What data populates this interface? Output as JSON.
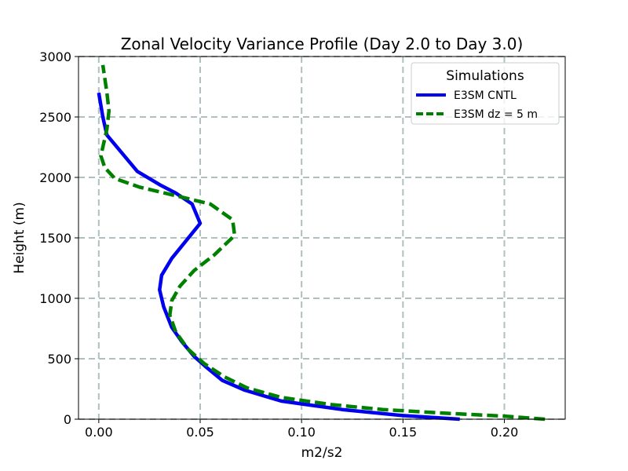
{
  "chart_data": {
    "type": "line",
    "title": "Zonal Velocity Variance Profile (Day 2.0 to Day 3.0)",
    "xlabel": "m2/s2",
    "ylabel": "Height (m)",
    "xlim": [
      -0.01,
      0.23
    ],
    "ylim": [
      0,
      3000
    ],
    "xticks": [
      0.0,
      0.05,
      0.1,
      0.15,
      0.2
    ],
    "xtick_labels": [
      "0.00",
      "0.05",
      "0.10",
      "0.15",
      "0.20"
    ],
    "yticks": [
      0,
      500,
      1000,
      1500,
      2000,
      2500,
      3000
    ],
    "ytick_labels": [
      "0",
      "500",
      "1000",
      "1500",
      "2000",
      "2500",
      "3000"
    ],
    "grid": true,
    "legend": {
      "title": "Simulations",
      "placement": "top-right"
    },
    "series": [
      {
        "name": "E3SM CNTL",
        "color": "#0000ee",
        "style": "solid",
        "points": [
          [
            0.178,
            0
          ],
          [
            0.15,
            30
          ],
          [
            0.12,
            80
          ],
          [
            0.09,
            150
          ],
          [
            0.072,
            240
          ],
          [
            0.061,
            320
          ],
          [
            0.053,
            430
          ],
          [
            0.047,
            520
          ],
          [
            0.041,
            640
          ],
          [
            0.036,
            760
          ],
          [
            0.032,
            930
          ],
          [
            0.03,
            1070
          ],
          [
            0.031,
            1190
          ],
          [
            0.036,
            1330
          ],
          [
            0.05,
            1620
          ],
          [
            0.046,
            1780
          ],
          [
            0.038,
            1870
          ],
          [
            0.03,
            1940
          ],
          [
            0.019,
            2050
          ],
          [
            0.004,
            2350
          ],
          [
            0.002,
            2500
          ],
          [
            0.0,
            2700
          ]
        ]
      },
      {
        "name": "E3SM dz = 5 m",
        "color": "#008000",
        "style": "dashed",
        "points": [
          [
            0.22,
            0
          ],
          [
            0.2,
            25
          ],
          [
            0.17,
            50
          ],
          [
            0.14,
            80
          ],
          [
            0.115,
            120
          ],
          [
            0.09,
            180
          ],
          [
            0.073,
            260
          ],
          [
            0.062,
            350
          ],
          [
            0.052,
            460
          ],
          [
            0.044,
            580
          ],
          [
            0.038,
            720
          ],
          [
            0.035,
            860
          ],
          [
            0.036,
            980
          ],
          [
            0.04,
            1100
          ],
          [
            0.047,
            1230
          ],
          [
            0.057,
            1360
          ],
          [
            0.067,
            1520
          ],
          [
            0.066,
            1650
          ],
          [
            0.055,
            1780
          ],
          [
            0.04,
            1840
          ],
          [
            0.02,
            1920
          ],
          [
            0.008,
            1990
          ],
          [
            0.003,
            2080
          ],
          [
            0.001,
            2180
          ],
          [
            0.002,
            2250
          ],
          [
            0.004,
            2400
          ],
          [
            0.005,
            2550
          ],
          [
            0.004,
            2700
          ],
          [
            0.002,
            2930
          ]
        ]
      }
    ]
  }
}
